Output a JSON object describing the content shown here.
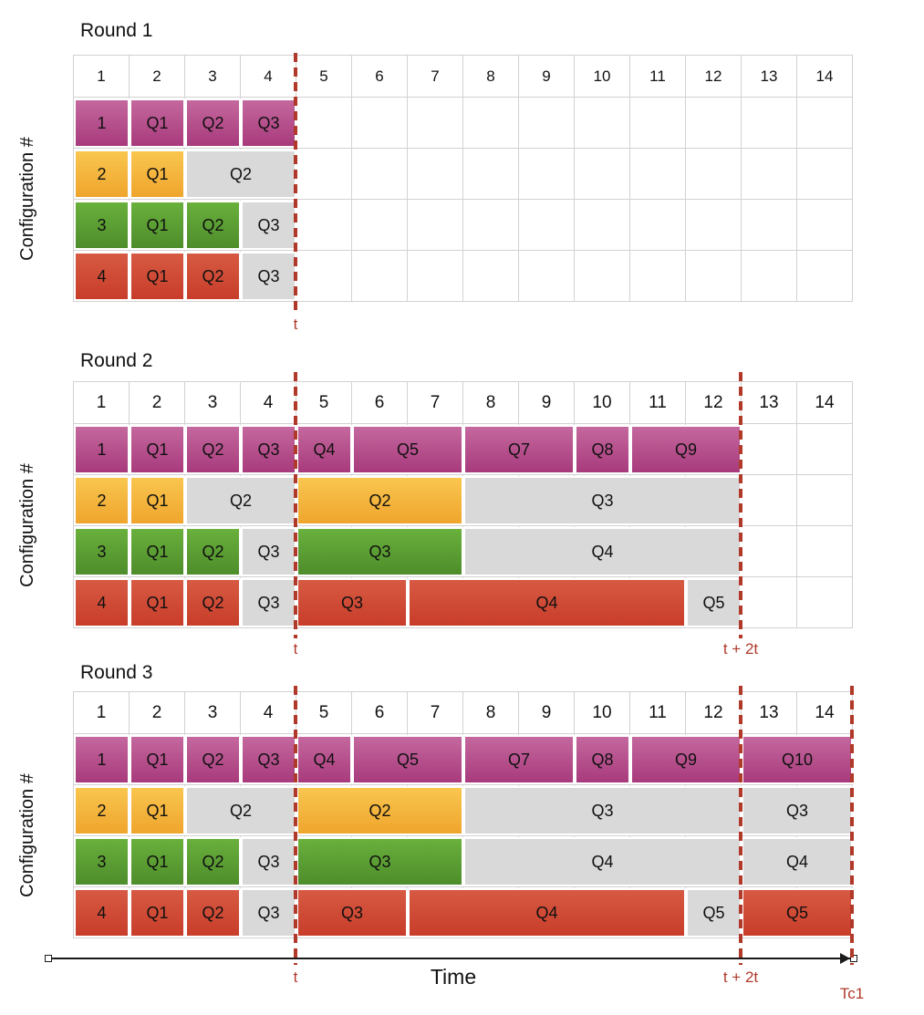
{
  "config_axis_label": "Configuration #",
  "axis": {
    "label": "Time"
  },
  "columns": [
    "1",
    "2",
    "3",
    "4",
    "5",
    "6",
    "7",
    "8",
    "9",
    "10",
    "11",
    "12",
    "13",
    "14"
  ],
  "palette": {
    "magenta": {
      "top": "#c4689e",
      "bottom": "#a83a7c"
    },
    "yellow": {
      "top": "#f9c64f",
      "bottom": "#efa52d"
    },
    "green": {
      "top": "#69b03c",
      "bottom": "#4e8d2b"
    },
    "red": {
      "top": "#d75a43",
      "bottom": "#c83d2a"
    },
    "gray": "#d9d9d9",
    "marker": "#b0392a",
    "gridline": "#d2d2d2"
  },
  "rounds": [
    {
      "title": "Round 1",
      "markers": [
        {
          "after_col": 4,
          "label": "t"
        }
      ],
      "rows": [
        {
          "config": "1",
          "color": "magenta",
          "segments": [
            {
              "label": "Q1",
              "start": 2,
              "span": 1
            },
            {
              "label": "Q2",
              "start": 3,
              "span": 1
            },
            {
              "label": "Q3",
              "start": 4,
              "span": 1
            }
          ]
        },
        {
          "config": "2",
          "color": "yellow",
          "segments": [
            {
              "label": "Q1",
              "start": 2,
              "span": 1
            },
            {
              "label": "Q2",
              "start": 3,
              "span": 2,
              "gray": true
            }
          ]
        },
        {
          "config": "3",
          "color": "green",
          "segments": [
            {
              "label": "Q1",
              "start": 2,
              "span": 1
            },
            {
              "label": "Q2",
              "start": 3,
              "span": 1
            },
            {
              "label": "Q3",
              "start": 4,
              "span": 1,
              "gray": true
            }
          ]
        },
        {
          "config": "4",
          "color": "red",
          "segments": [
            {
              "label": "Q1",
              "start": 2,
              "span": 1
            },
            {
              "label": "Q2",
              "start": 3,
              "span": 1
            },
            {
              "label": "Q3",
              "start": 4,
              "span": 1,
              "gray": true
            }
          ]
        }
      ]
    },
    {
      "title": "Round 2",
      "markers": [
        {
          "after_col": 4,
          "label": "t"
        },
        {
          "after_col": 12,
          "label": "t + 2t"
        }
      ],
      "rows": [
        {
          "config": "1",
          "color": "magenta",
          "segments": [
            {
              "label": "Q1",
              "start": 2,
              "span": 1
            },
            {
              "label": "Q2",
              "start": 3,
              "span": 1
            },
            {
              "label": "Q3",
              "start": 4,
              "span": 1
            },
            {
              "label": "Q4",
              "start": 5,
              "span": 1
            },
            {
              "label": "Q5",
              "start": 6,
              "span": 2
            },
            {
              "label": "Q7",
              "start": 8,
              "span": 2
            },
            {
              "label": "Q8",
              "start": 10,
              "span": 1
            },
            {
              "label": "Q9",
              "start": 11,
              "span": 2
            }
          ]
        },
        {
          "config": "2",
          "color": "yellow",
          "segments": [
            {
              "label": "Q1",
              "start": 2,
              "span": 1
            },
            {
              "label": "Q2",
              "start": 3,
              "span": 2,
              "gray": true
            },
            {
              "label": "Q2",
              "start": 5,
              "span": 3
            },
            {
              "label": "Q3",
              "start": 8,
              "span": 5,
              "gray": true
            }
          ]
        },
        {
          "config": "3",
          "color": "green",
          "segments": [
            {
              "label": "Q1",
              "start": 2,
              "span": 1
            },
            {
              "label": "Q2",
              "start": 3,
              "span": 1
            },
            {
              "label": "Q3",
              "start": 4,
              "span": 1,
              "gray": true
            },
            {
              "label": "Q3",
              "start": 5,
              "span": 3
            },
            {
              "label": "Q4",
              "start": 8,
              "span": 5,
              "gray": true
            }
          ]
        },
        {
          "config": "4",
          "color": "red",
          "segments": [
            {
              "label": "Q1",
              "start": 2,
              "span": 1
            },
            {
              "label": "Q2",
              "start": 3,
              "span": 1
            },
            {
              "label": "Q3",
              "start": 4,
              "span": 1,
              "gray": true
            },
            {
              "label": "Q3",
              "start": 5,
              "span": 2
            },
            {
              "label": "Q4",
              "start": 7,
              "span": 5
            },
            {
              "label": "Q5",
              "start": 12,
              "span": 1,
              "gray": true
            }
          ]
        }
      ]
    },
    {
      "title": "Round 3",
      "markers": [
        {
          "after_col": 4,
          "label": "t"
        },
        {
          "after_col": 12,
          "label": "t + 2t"
        },
        {
          "after_col": 14,
          "label": "Tc1"
        }
      ],
      "rows": [
        {
          "config": "1",
          "color": "magenta",
          "segments": [
            {
              "label": "Q1",
              "start": 2,
              "span": 1
            },
            {
              "label": "Q2",
              "start": 3,
              "span": 1
            },
            {
              "label": "Q3",
              "start": 4,
              "span": 1
            },
            {
              "label": "Q4",
              "start": 5,
              "span": 1
            },
            {
              "label": "Q5",
              "start": 6,
              "span": 2
            },
            {
              "label": "Q7",
              "start": 8,
              "span": 2
            },
            {
              "label": "Q8",
              "start": 10,
              "span": 1
            },
            {
              "label": "Q9",
              "start": 11,
              "span": 2
            },
            {
              "label": "Q10",
              "start": 13,
              "span": 2
            }
          ]
        },
        {
          "config": "2",
          "color": "yellow",
          "segments": [
            {
              "label": "Q1",
              "start": 2,
              "span": 1
            },
            {
              "label": "Q2",
              "start": 3,
              "span": 2,
              "gray": true
            },
            {
              "label": "Q2",
              "start": 5,
              "span": 3
            },
            {
              "label": "Q3",
              "start": 8,
              "span": 5,
              "gray": true
            },
            {
              "label": "Q3",
              "start": 13,
              "span": 2,
              "gray": true
            }
          ]
        },
        {
          "config": "3",
          "color": "green",
          "segments": [
            {
              "label": "Q1",
              "start": 2,
              "span": 1
            },
            {
              "label": "Q2",
              "start": 3,
              "span": 1
            },
            {
              "label": "Q3",
              "start": 4,
              "span": 1,
              "gray": true
            },
            {
              "label": "Q3",
              "start": 5,
              "span": 3
            },
            {
              "label": "Q4",
              "start": 8,
              "span": 5,
              "gray": true
            },
            {
              "label": "Q4",
              "start": 13,
              "span": 2,
              "gray": true
            }
          ]
        },
        {
          "config": "4",
          "color": "red",
          "segments": [
            {
              "label": "Q1",
              "start": 2,
              "span": 1
            },
            {
              "label": "Q2",
              "start": 3,
              "span": 1
            },
            {
              "label": "Q3",
              "start": 4,
              "span": 1,
              "gray": true
            },
            {
              "label": "Q3",
              "start": 5,
              "span": 2
            },
            {
              "label": "Q4",
              "start": 7,
              "span": 5
            },
            {
              "label": "Q5",
              "start": 12,
              "span": 1,
              "gray": true
            },
            {
              "label": "Q5",
              "start": 13,
              "span": 2
            }
          ]
        }
      ]
    }
  ]
}
